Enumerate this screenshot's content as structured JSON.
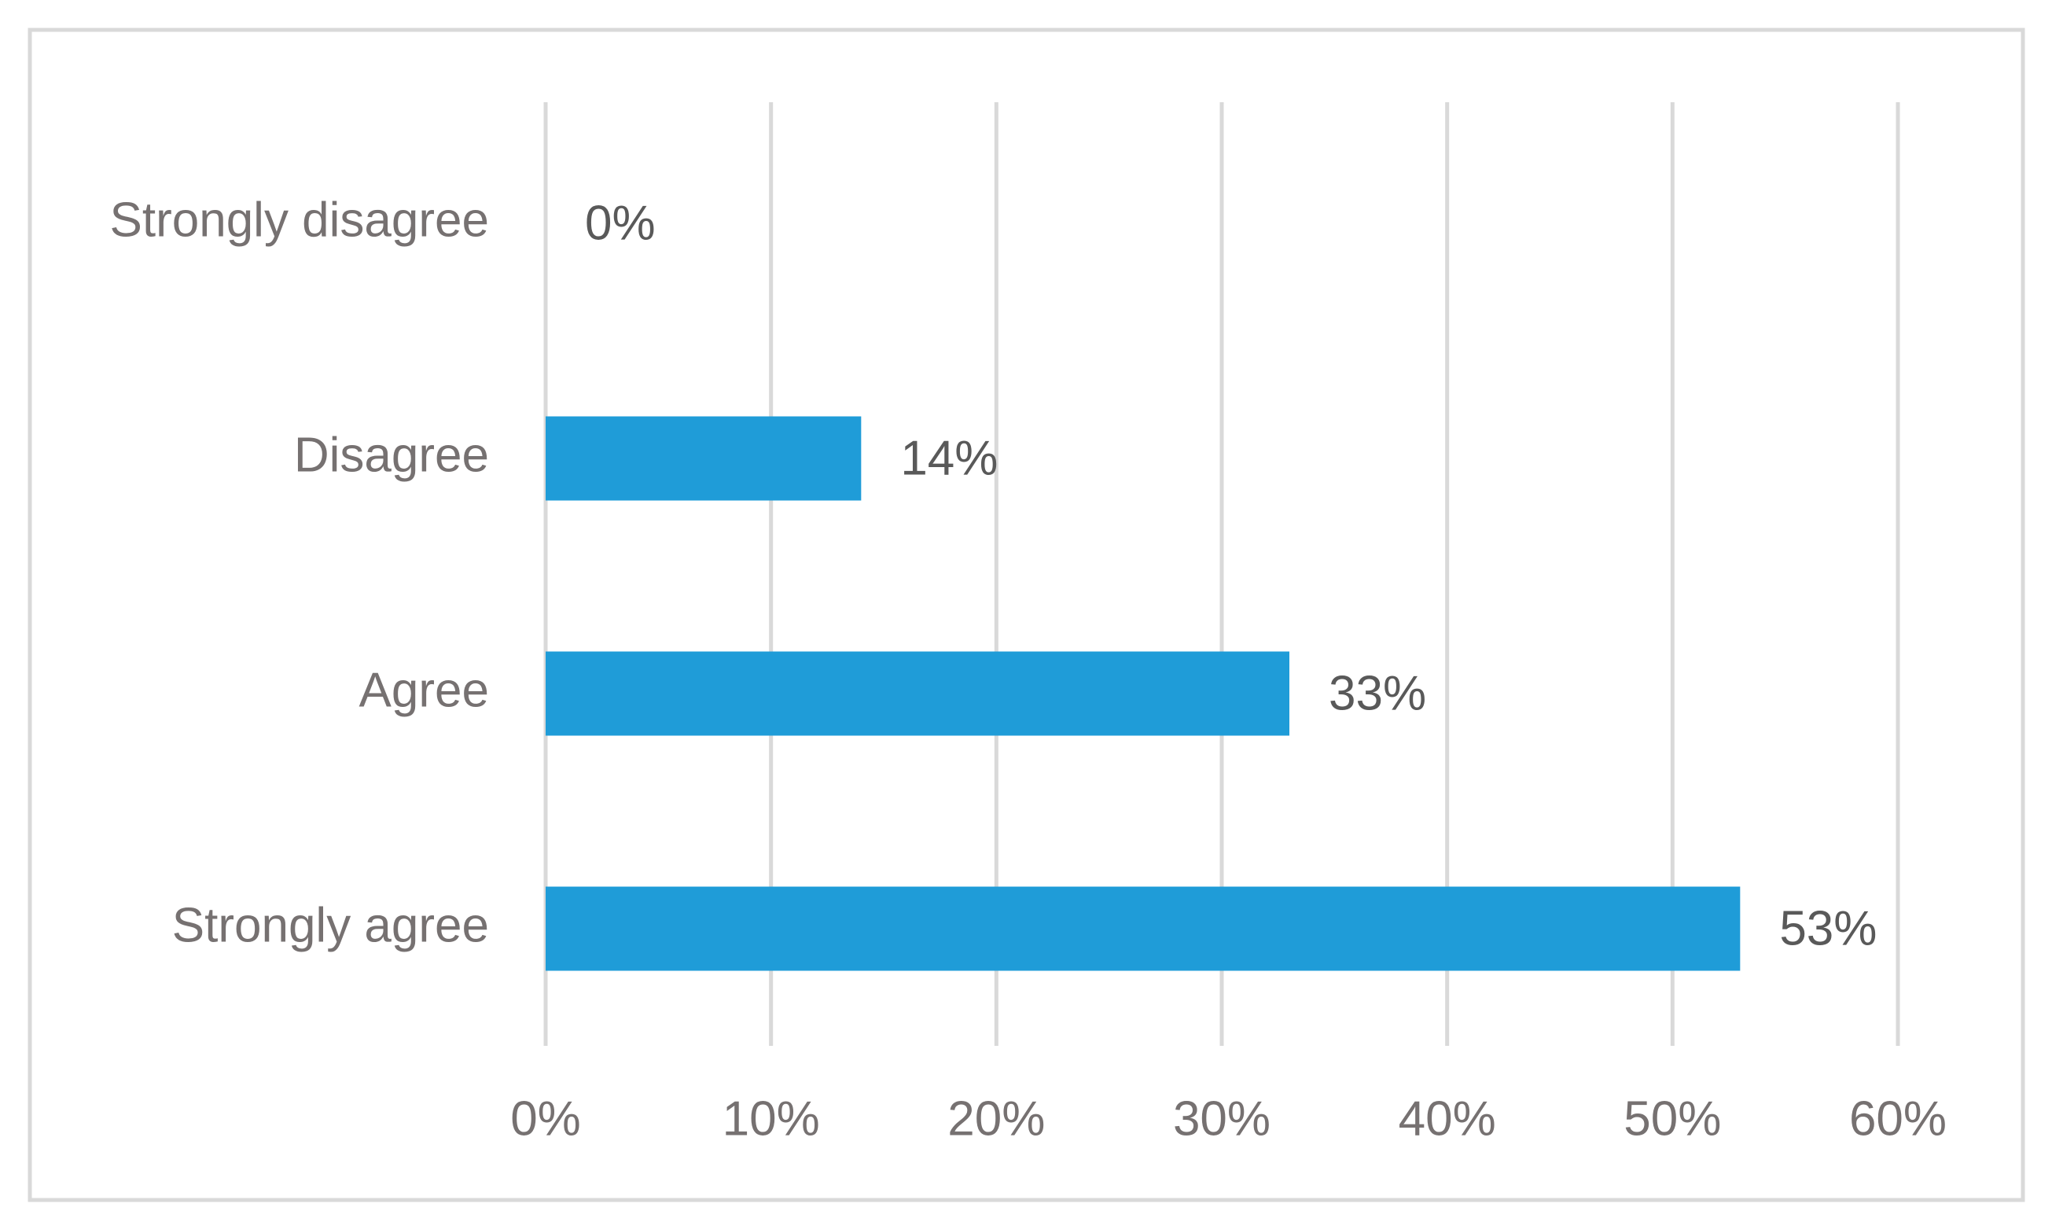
{
  "chart_data": {
    "type": "barh",
    "categories": [
      "Strongly disagree",
      "Disagree",
      "Agree",
      "Strongly agree"
    ],
    "values": [
      0,
      14,
      33,
      53
    ],
    "value_labels": [
      "0%",
      "14%",
      "33%",
      "53%"
    ],
    "color": "#1f9cd8",
    "xlim": [
      0,
      60
    ],
    "xticks": [
      {
        "value": 0,
        "label": "0%"
      },
      {
        "value": 10,
        "label": "10%"
      },
      {
        "value": 20,
        "label": "20%"
      },
      {
        "value": 30,
        "label": "30%"
      },
      {
        "value": 40,
        "label": "40%"
      },
      {
        "value": 50,
        "label": "50%"
      },
      {
        "value": 60,
        "label": "60%"
      }
    ],
    "grid": true
  }
}
